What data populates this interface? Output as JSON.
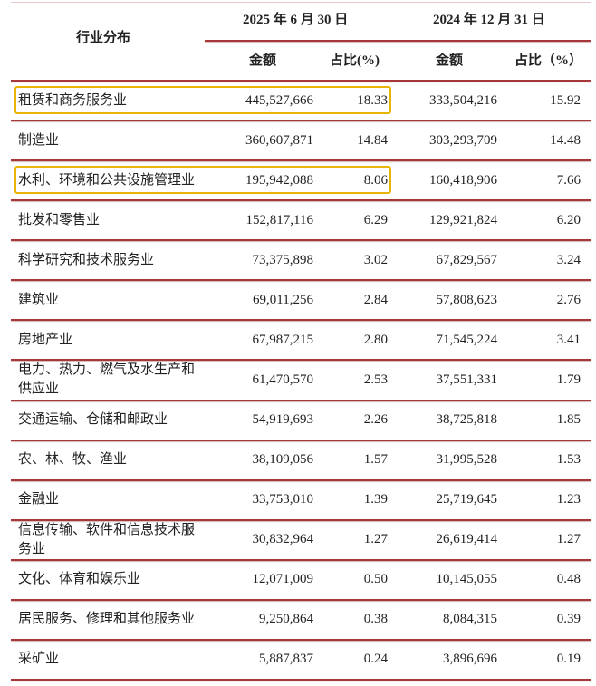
{
  "header": {
    "industry_label": "行业分布",
    "period1": "2025 年 6 月 30 日",
    "period2": "2024 年 12 月 31 日",
    "amount_label": "金额",
    "share_label_1": "占比(%)",
    "share_label_2": "占比（%）"
  },
  "highlight_color": "#eab308",
  "rule_color": "#a8373a",
  "rows": [
    {
      "industry": "租赁和商务服务业",
      "amt_2025": "445,527,666",
      "pct_2025": "18.33",
      "amt_2024": "333,504,216",
      "pct_2024": "15.92",
      "highlighted": true
    },
    {
      "industry": "制造业",
      "amt_2025": "360,607,871",
      "pct_2025": "14.84",
      "amt_2024": "303,293,709",
      "pct_2024": "14.48",
      "highlighted": false
    },
    {
      "industry": "水利、环境和公共设施管理业",
      "amt_2025": "195,942,088",
      "pct_2025": "8.06",
      "amt_2024": "160,418,906",
      "pct_2024": "7.66",
      "highlighted": true
    },
    {
      "industry": "批发和零售业",
      "amt_2025": "152,817,116",
      "pct_2025": "6.29",
      "amt_2024": "129,921,824",
      "pct_2024": "6.20",
      "highlighted": false
    },
    {
      "industry": "科学研究和技术服务业",
      "amt_2025": "73,375,898",
      "pct_2025": "3.02",
      "amt_2024": "67,829,567",
      "pct_2024": "3.24",
      "highlighted": false
    },
    {
      "industry": "建筑业",
      "amt_2025": "69,011,256",
      "pct_2025": "2.84",
      "amt_2024": "57,808,623",
      "pct_2024": "2.76",
      "highlighted": false
    },
    {
      "industry": "房地产业",
      "amt_2025": "67,987,215",
      "pct_2025": "2.80",
      "amt_2024": "71,545,224",
      "pct_2024": "3.41",
      "highlighted": false
    },
    {
      "industry": "电力、热力、燃气及水生产和供应业",
      "amt_2025": "61,470,570",
      "pct_2025": "2.53",
      "amt_2024": "37,551,331",
      "pct_2024": "1.79",
      "highlighted": false
    },
    {
      "industry": "交通运输、仓储和邮政业",
      "amt_2025": "54,919,693",
      "pct_2025": "2.26",
      "amt_2024": "38,725,818",
      "pct_2024": "1.85",
      "highlighted": false
    },
    {
      "industry": "农、林、牧、渔业",
      "amt_2025": "38,109,056",
      "pct_2025": "1.57",
      "amt_2024": "31,995,528",
      "pct_2024": "1.53",
      "highlighted": false
    },
    {
      "industry": "金融业",
      "amt_2025": "33,753,010",
      "pct_2025": "1.39",
      "amt_2024": "25,719,645",
      "pct_2024": "1.23",
      "highlighted": false
    },
    {
      "industry": "信息传输、软件和信息技术服务业",
      "amt_2025": "30,832,964",
      "pct_2025": "1.27",
      "amt_2024": "26,619,414",
      "pct_2024": "1.27",
      "highlighted": false
    },
    {
      "industry": "文化、体育和娱乐业",
      "amt_2025": "12,071,009",
      "pct_2025": "0.50",
      "amt_2024": "10,145,055",
      "pct_2024": "0.48",
      "highlighted": false
    },
    {
      "industry": "居民服务、修理和其他服务业",
      "amt_2025": "9,250,864",
      "pct_2025": "0.38",
      "amt_2024": "8,084,315",
      "pct_2024": "0.39",
      "highlighted": false
    },
    {
      "industry": "采矿业",
      "amt_2025": "5,887,837",
      "pct_2025": "0.24",
      "amt_2024": "3,896,696",
      "pct_2024": "0.19",
      "highlighted": false
    }
  ]
}
